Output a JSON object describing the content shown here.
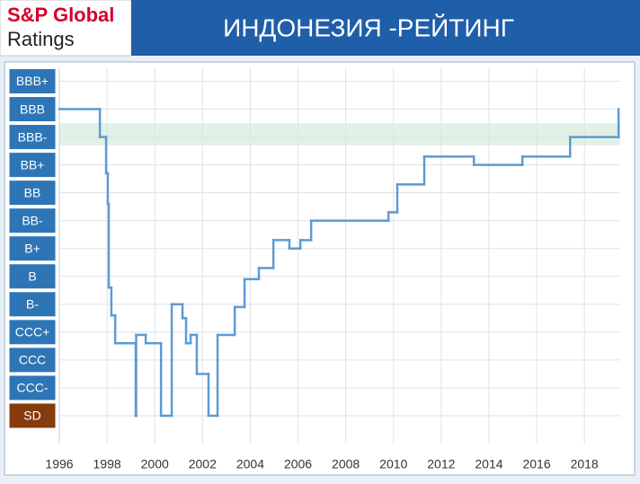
{
  "header": {
    "brand": "S&P Global",
    "brand_sub": "Ratings"
  },
  "chart_data": {
    "type": "step",
    "title": "ИНДОНЕЗИЯ -РЕЙТИНГ",
    "xlim": [
      1996,
      2019.5
    ],
    "xticks": [
      1996,
      1998,
      2000,
      2002,
      2004,
      2006,
      2008,
      2010,
      2012,
      2014,
      2016,
      2018
    ],
    "ylim": [
      -1,
      12.5
    ],
    "yticks": [
      {
        "value": 0,
        "label": "SD"
      },
      {
        "value": 1,
        "label": "CCC-"
      },
      {
        "value": 2,
        "label": "CCC"
      },
      {
        "value": 3,
        "label": "CCC+"
      },
      {
        "value": 4,
        "label": "B-"
      },
      {
        "value": 5,
        "label": "B"
      },
      {
        "value": 6,
        "label": "B+"
      },
      {
        "value": 7,
        "label": "BB-"
      },
      {
        "value": 8,
        "label": "BB"
      },
      {
        "value": 9,
        "label": "BB+"
      },
      {
        "value": 10,
        "label": "BBB-"
      },
      {
        "value": 11,
        "label": "BBB"
      },
      {
        "value": 12,
        "label": "BBB+"
      }
    ],
    "ytick_box_colors": [
      "#843c0c",
      "#2e75b6",
      "#2e75b6",
      "#2e75b6",
      "#2e75b6",
      "#2e75b6",
      "#2e75b6",
      "#2e75b6",
      "#2e75b6",
      "#2e75b6",
      "#2e75b6",
      "#2e75b6",
      "#2e75b6"
    ],
    "grid": true,
    "highlight": {
      "from": 9.7,
      "to": 10.5,
      "color": "#e2f1e5"
    },
    "series": [
      {
        "color": "#5b9bd5",
        "x": [
          1996.0,
          1997.7,
          1997.96,
          1998.03,
          1998.07,
          1998.18,
          1998.34,
          1999.2,
          1999.22,
          1999.62,
          2000.26,
          2000.71,
          2001.16,
          2001.31,
          2001.5,
          2001.76,
          2002.25,
          2002.63,
          2003.35,
          2003.76,
          2004.36,
          2004.97,
          2005.64,
          2006.1,
          2006.55,
          2009.79,
          2010.16,
          2011.29,
          2013.37,
          2015.4,
          2017.4,
          2019.43
        ],
        "values": [
          11.0,
          10.0,
          8.7,
          7.6,
          4.6,
          3.6,
          2.6,
          0,
          2.9,
          2.6,
          0,
          4.0,
          3.5,
          2.6,
          2.9,
          1.5,
          0,
          2.9,
          3.9,
          4.9,
          5.3,
          6.3,
          6.0,
          6.3,
          7.0,
          7.3,
          8.3,
          9.3,
          9.0,
          9.3,
          10.0,
          11.0
        ]
      }
    ]
  }
}
